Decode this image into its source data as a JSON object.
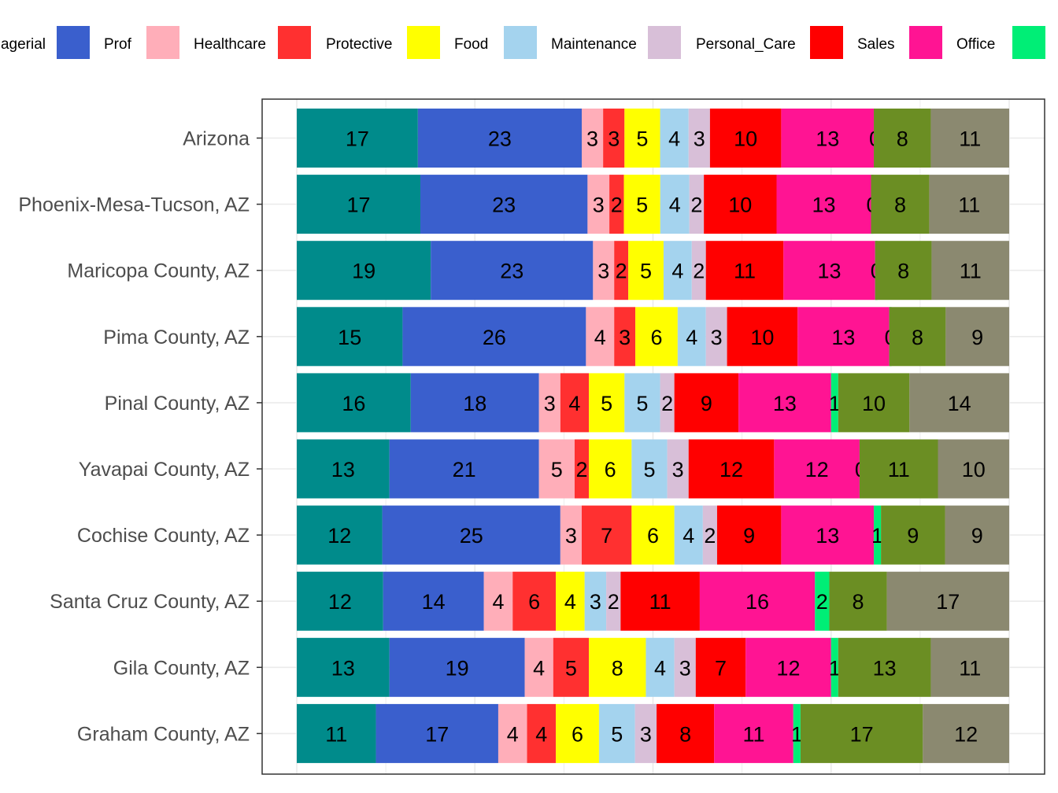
{
  "chart_data": {
    "type": "bar",
    "orientation": "horizontal",
    "stacked": true,
    "grid": true,
    "legend_position": "top",
    "categories": [
      "Arizona",
      "Phoenix-Mesa-Tucson, AZ",
      "Maricopa County, AZ",
      "Pima County, AZ",
      "Pinal County, AZ",
      "Yavapai County, AZ",
      "Cochise County, AZ",
      "Santa Cruz County, AZ",
      "Gila County, AZ",
      "Graham County, AZ"
    ],
    "series": [
      {
        "name": "Managerial",
        "color": "#008B8B",
        "values": [
          17,
          17,
          19,
          15,
          16,
          13,
          12,
          12,
          13,
          11
        ]
      },
      {
        "name": "Prof",
        "color": "#3A5FCD",
        "values": [
          23,
          23,
          23,
          26,
          18,
          21,
          25,
          14,
          19,
          17
        ]
      },
      {
        "name": "Healthcare",
        "color": "#FFAEB9",
        "values": [
          3,
          3,
          3,
          4,
          3,
          5,
          3,
          4,
          4,
          4
        ]
      },
      {
        "name": "Protective",
        "color": "#FF3030",
        "values": [
          3,
          2,
          2,
          3,
          4,
          2,
          7,
          6,
          5,
          4
        ]
      },
      {
        "name": "Food",
        "color": "#FFFF00",
        "values": [
          5,
          5,
          5,
          6,
          5,
          6,
          6,
          4,
          8,
          6
        ]
      },
      {
        "name": "Maintenance",
        "color": "#A4D3EE",
        "values": [
          4,
          4,
          4,
          4,
          5,
          5,
          4,
          3,
          4,
          5
        ]
      },
      {
        "name": "Personal_Care",
        "color": "#D8BFD8",
        "values": [
          3,
          2,
          2,
          3,
          2,
          3,
          2,
          2,
          3,
          3
        ]
      },
      {
        "name": "Sales",
        "color": "#FF0000",
        "values": [
          10,
          10,
          11,
          10,
          9,
          12,
          9,
          11,
          7,
          8
        ]
      },
      {
        "name": "Office",
        "color": "#FF1493",
        "values": [
          13,
          13,
          13,
          13,
          13,
          12,
          13,
          16,
          12,
          11
        ]
      },
      {
        "values": [
          0,
          0,
          0,
          0,
          1,
          0,
          1,
          2,
          1,
          1
        ],
        "color": "#00EE76",
        "labels": [
          0,
          0,
          0,
          0,
          1,
          0,
          1,
          2,
          1,
          1
        ]
      },
      {
        "values": [
          8,
          8,
          8,
          8,
          10,
          11,
          9,
          8,
          13,
          17
        ],
        "color": "#6B8E23"
      },
      {
        "values": [
          11,
          11,
          11,
          9,
          14,
          10,
          9,
          17,
          11,
          12
        ],
        "color": "#8B8970"
      }
    ],
    "xlim": [
      0,
      100
    ],
    "xlabel": "",
    "ylabel": "",
    "title": ""
  },
  "legend": {
    "visible_labels": [
      "agerial",
      "Prof",
      "Healthcare",
      "Protective",
      "Food",
      "Maintenance",
      "Personal_Care",
      "Sales",
      "Office"
    ]
  }
}
